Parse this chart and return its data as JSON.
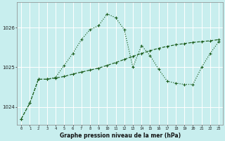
{
  "title": "Graphe pression niveau de la mer (hPa)",
  "bg_color": "#c8eeee",
  "grid_color": "#ffffff",
  "line_color": "#1a5c1a",
  "x_values": [
    0,
    1,
    2,
    3,
    4,
    5,
    6,
    7,
    8,
    9,
    10,
    11,
    12,
    13,
    14,
    15,
    16,
    17,
    18,
    19,
    20,
    21,
    22,
    23
  ],
  "y_dotted": [
    1023.7,
    1024.1,
    1024.7,
    1024.7,
    1024.75,
    1025.05,
    1025.35,
    1025.7,
    1025.95,
    1026.05,
    1026.35,
    1026.25,
    1025.95,
    1025.0,
    1025.55,
    1025.3,
    1024.95,
    1024.65,
    1024.6,
    1024.57,
    1024.57,
    1025.0,
    1025.35,
    1025.65
  ],
  "y_dashed": [
    1023.7,
    1024.1,
    1024.7,
    1024.7,
    1024.73,
    1024.77,
    1024.83,
    1024.88,
    1024.93,
    1024.98,
    1025.05,
    1025.12,
    1025.2,
    1025.28,
    1025.35,
    1025.42,
    1025.48,
    1025.53,
    1025.57,
    1025.6,
    1025.63,
    1025.65,
    1025.67,
    1025.7
  ],
  "ylim": [
    1023.55,
    1026.65
  ],
  "yticks": [
    1024,
    1025,
    1026
  ],
  "xticks": [
    0,
    1,
    2,
    3,
    4,
    5,
    6,
    7,
    8,
    9,
    10,
    11,
    12,
    13,
    14,
    15,
    16,
    17,
    18,
    19,
    20,
    21,
    22,
    23
  ]
}
